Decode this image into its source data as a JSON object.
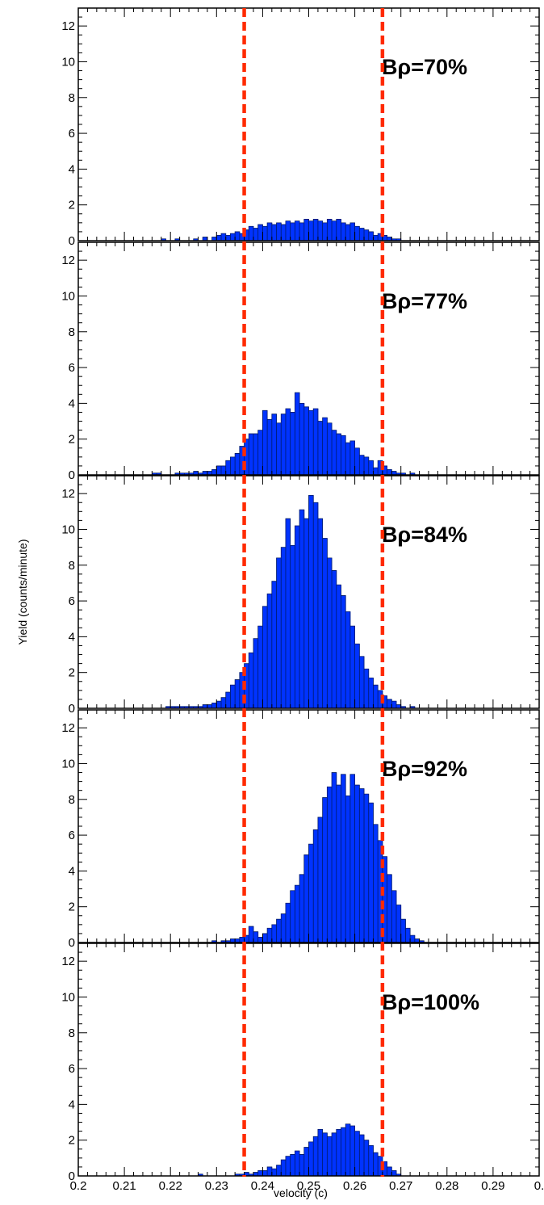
{
  "chart_data": {
    "type": "histogram",
    "xlabel": "velocity (c)",
    "ylabel": "Yield (counts/minute)",
    "xlim": [
      0.2,
      0.3
    ],
    "ylim": [
      0,
      13
    ],
    "bin_width": 0.001,
    "x_tick_labels": [
      "0.2",
      "0.21",
      "0.22",
      "0.23",
      "0.24",
      "0.25",
      "0.26",
      "0.27",
      "0.28",
      "0.29",
      "0."
    ],
    "y_tick_labels": [
      "0",
      "2",
      "4",
      "6",
      "8",
      "10",
      "12"
    ],
    "cut_lines": [
      0.236,
      0.266
    ],
    "colors": {
      "bars": "#0033ff",
      "cut_lines": "#ff2a00",
      "axes": "#000000"
    },
    "panels": [
      {
        "label": "Bρ=70%",
        "bins": [
          [
            0.218,
            0.1
          ],
          [
            0.221,
            0.1
          ],
          [
            0.225,
            0.1
          ],
          [
            0.227,
            0.2
          ],
          [
            0.229,
            0.2
          ],
          [
            0.23,
            0.3
          ],
          [
            0.231,
            0.4
          ],
          [
            0.232,
            0.3
          ],
          [
            0.233,
            0.4
          ],
          [
            0.234,
            0.5
          ],
          [
            0.235,
            0.4
          ],
          [
            0.236,
            0.6
          ],
          [
            0.237,
            0.8
          ],
          [
            0.238,
            0.7
          ],
          [
            0.239,
            0.9
          ],
          [
            0.24,
            0.8
          ],
          [
            0.241,
            1.0
          ],
          [
            0.242,
            0.9
          ],
          [
            0.243,
            1.0
          ],
          [
            0.244,
            0.9
          ],
          [
            0.245,
            1.1
          ],
          [
            0.246,
            1.0
          ],
          [
            0.247,
            1.1
          ],
          [
            0.248,
            1.0
          ],
          [
            0.249,
            1.2
          ],
          [
            0.25,
            1.1
          ],
          [
            0.251,
            1.2
          ],
          [
            0.252,
            1.1
          ],
          [
            0.253,
            1.0
          ],
          [
            0.254,
            1.2
          ],
          [
            0.255,
            1.1
          ],
          [
            0.256,
            1.2
          ],
          [
            0.257,
            1.0
          ],
          [
            0.258,
            0.9
          ],
          [
            0.259,
            1.0
          ],
          [
            0.26,
            0.8
          ],
          [
            0.261,
            0.7
          ],
          [
            0.262,
            0.6
          ],
          [
            0.263,
            0.5
          ],
          [
            0.264,
            0.3
          ],
          [
            0.265,
            0.4
          ],
          [
            0.266,
            0.3
          ],
          [
            0.267,
            0.2
          ],
          [
            0.268,
            0.1
          ],
          [
            0.269,
            0.1
          ]
        ]
      },
      {
        "label": "Bρ=77%",
        "bins": [
          [
            0.216,
            0.1
          ],
          [
            0.217,
            0.1
          ],
          [
            0.221,
            0.1
          ],
          [
            0.222,
            0.1
          ],
          [
            0.223,
            0.1
          ],
          [
            0.224,
            0.1
          ],
          [
            0.225,
            0.2
          ],
          [
            0.226,
            0.1
          ],
          [
            0.227,
            0.2
          ],
          [
            0.228,
            0.2
          ],
          [
            0.229,
            0.3
          ],
          [
            0.23,
            0.5
          ],
          [
            0.231,
            0.5
          ],
          [
            0.232,
            0.8
          ],
          [
            0.233,
            1.0
          ],
          [
            0.234,
            1.2
          ],
          [
            0.235,
            1.6
          ],
          [
            0.236,
            2.0
          ],
          [
            0.237,
            2.3
          ],
          [
            0.238,
            2.3
          ],
          [
            0.239,
            2.5
          ],
          [
            0.24,
            3.6
          ],
          [
            0.241,
            3.1
          ],
          [
            0.242,
            3.4
          ],
          [
            0.243,
            2.9
          ],
          [
            0.244,
            3.4
          ],
          [
            0.245,
            3.7
          ],
          [
            0.246,
            3.5
          ],
          [
            0.247,
            4.6
          ],
          [
            0.248,
            4.0
          ],
          [
            0.249,
            3.8
          ],
          [
            0.25,
            3.6
          ],
          [
            0.251,
            3.7
          ],
          [
            0.252,
            3.0
          ],
          [
            0.253,
            3.2
          ],
          [
            0.254,
            2.9
          ],
          [
            0.255,
            2.5
          ],
          [
            0.256,
            2.3
          ],
          [
            0.257,
            2.2
          ],
          [
            0.258,
            1.8
          ],
          [
            0.259,
            1.9
          ],
          [
            0.26,
            1.5
          ],
          [
            0.261,
            1.1
          ],
          [
            0.262,
            1.0
          ],
          [
            0.263,
            0.8
          ],
          [
            0.264,
            0.4
          ],
          [
            0.265,
            0.8
          ],
          [
            0.266,
            0.5
          ],
          [
            0.267,
            0.3
          ],
          [
            0.268,
            0.2
          ],
          [
            0.269,
            0.1
          ],
          [
            0.27,
            0.1
          ],
          [
            0.272,
            0.1
          ]
        ]
      },
      {
        "label": "Bρ=84%",
        "bins": [
          [
            0.219,
            0.1
          ],
          [
            0.22,
            0.1
          ],
          [
            0.221,
            0.1
          ],
          [
            0.222,
            0.1
          ],
          [
            0.223,
            0.1
          ],
          [
            0.224,
            0.1
          ],
          [
            0.225,
            0.1
          ],
          [
            0.226,
            0.1
          ],
          [
            0.227,
            0.2
          ],
          [
            0.228,
            0.2
          ],
          [
            0.229,
            0.3
          ],
          [
            0.23,
            0.4
          ],
          [
            0.231,
            0.6
          ],
          [
            0.232,
            0.9
          ],
          [
            0.233,
            1.3
          ],
          [
            0.234,
            1.6
          ],
          [
            0.235,
            2.0
          ],
          [
            0.236,
            2.5
          ],
          [
            0.237,
            3.1
          ],
          [
            0.238,
            3.9
          ],
          [
            0.239,
            4.6
          ],
          [
            0.24,
            5.7
          ],
          [
            0.241,
            6.4
          ],
          [
            0.242,
            7.1
          ],
          [
            0.243,
            8.4
          ],
          [
            0.244,
            9.0
          ],
          [
            0.245,
            10.6
          ],
          [
            0.246,
            9.1
          ],
          [
            0.247,
            10.2
          ],
          [
            0.248,
            11.1
          ],
          [
            0.249,
            10.6
          ],
          [
            0.25,
            11.9
          ],
          [
            0.251,
            11.5
          ],
          [
            0.252,
            10.6
          ],
          [
            0.253,
            9.5
          ],
          [
            0.254,
            8.4
          ],
          [
            0.255,
            7.7
          ],
          [
            0.256,
            6.9
          ],
          [
            0.257,
            6.3
          ],
          [
            0.258,
            5.4
          ],
          [
            0.259,
            4.6
          ],
          [
            0.26,
            3.6
          ],
          [
            0.261,
            2.9
          ],
          [
            0.262,
            2.2
          ],
          [
            0.263,
            1.7
          ],
          [
            0.264,
            1.3
          ],
          [
            0.265,
            1.0
          ],
          [
            0.266,
            0.7
          ],
          [
            0.267,
            0.5
          ],
          [
            0.268,
            0.4
          ],
          [
            0.269,
            0.2
          ],
          [
            0.27,
            0.1
          ],
          [
            0.272,
            0.1
          ]
        ]
      },
      {
        "label": "Bρ=92%",
        "bins": [
          [
            0.229,
            0.1
          ],
          [
            0.231,
            0.1
          ],
          [
            0.232,
            0.1
          ],
          [
            0.233,
            0.2
          ],
          [
            0.234,
            0.2
          ],
          [
            0.235,
            0.3
          ],
          [
            0.236,
            0.4
          ],
          [
            0.237,
            0.9
          ],
          [
            0.238,
            0.6
          ],
          [
            0.239,
            0.3
          ],
          [
            0.24,
            0.5
          ],
          [
            0.241,
            0.8
          ],
          [
            0.242,
            1.0
          ],
          [
            0.243,
            1.3
          ],
          [
            0.244,
            1.6
          ],
          [
            0.245,
            2.2
          ],
          [
            0.246,
            2.9
          ],
          [
            0.247,
            3.2
          ],
          [
            0.248,
            3.8
          ],
          [
            0.249,
            4.9
          ],
          [
            0.25,
            5.5
          ],
          [
            0.251,
            6.3
          ],
          [
            0.252,
            7.0
          ],
          [
            0.253,
            8.1
          ],
          [
            0.254,
            8.7
          ],
          [
            0.255,
            9.5
          ],
          [
            0.256,
            8.8
          ],
          [
            0.257,
            9.4
          ],
          [
            0.258,
            8.2
          ],
          [
            0.259,
            9.4
          ],
          [
            0.26,
            8.8
          ],
          [
            0.261,
            8.6
          ],
          [
            0.262,
            8.3
          ],
          [
            0.263,
            7.8
          ],
          [
            0.264,
            6.6
          ],
          [
            0.265,
            5.7
          ],
          [
            0.266,
            4.8
          ],
          [
            0.267,
            3.8
          ],
          [
            0.268,
            2.9
          ],
          [
            0.269,
            2.1
          ],
          [
            0.27,
            1.3
          ],
          [
            0.271,
            0.8
          ],
          [
            0.272,
            0.4
          ],
          [
            0.273,
            0.2
          ],
          [
            0.274,
            0.1
          ]
        ]
      },
      {
        "label": "Bρ=100%",
        "bins": [
          [
            0.226,
            0.1
          ],
          [
            0.234,
            0.1
          ],
          [
            0.235,
            0.1
          ],
          [
            0.236,
            0.2
          ],
          [
            0.237,
            0.1
          ],
          [
            0.238,
            0.2
          ],
          [
            0.239,
            0.3
          ],
          [
            0.24,
            0.3
          ],
          [
            0.241,
            0.5
          ],
          [
            0.242,
            0.4
          ],
          [
            0.243,
            0.6
          ],
          [
            0.244,
            0.9
          ],
          [
            0.245,
            1.1
          ],
          [
            0.246,
            1.2
          ],
          [
            0.247,
            1.4
          ],
          [
            0.248,
            1.2
          ],
          [
            0.249,
            1.6
          ],
          [
            0.25,
            1.9
          ],
          [
            0.251,
            2.2
          ],
          [
            0.252,
            2.6
          ],
          [
            0.253,
            2.4
          ],
          [
            0.254,
            2.2
          ],
          [
            0.255,
            2.4
          ],
          [
            0.256,
            2.6
          ],
          [
            0.257,
            2.7
          ],
          [
            0.258,
            2.9
          ],
          [
            0.259,
            2.8
          ],
          [
            0.26,
            2.5
          ],
          [
            0.261,
            2.3
          ],
          [
            0.262,
            2.0
          ],
          [
            0.263,
            1.7
          ],
          [
            0.264,
            1.3
          ],
          [
            0.265,
            1.1
          ],
          [
            0.266,
            0.8
          ],
          [
            0.267,
            0.5
          ],
          [
            0.268,
            0.3
          ],
          [
            0.269,
            0.1
          ]
        ]
      }
    ]
  }
}
